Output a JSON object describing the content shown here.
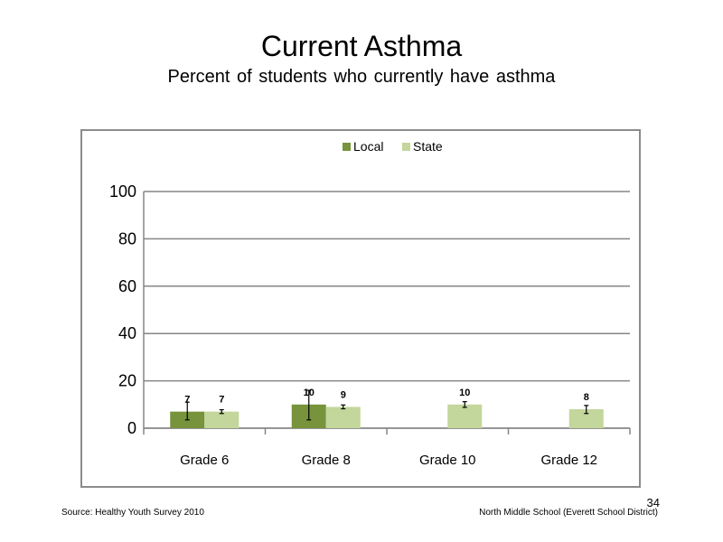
{
  "slide": {
    "title": "Current Asthma",
    "subtitle": "Percent of students who currently have asthma",
    "source": "Source: Healthy Youth Survey 2010",
    "school": "North Middle School (Everett School District)",
    "page_number": "34"
  },
  "chart_data": {
    "type": "bar",
    "categories": [
      "Grade 6",
      "Grade 8",
      "Grade 10",
      "Grade 12"
    ],
    "series": [
      {
        "name": "Local",
        "color": "#77933c",
        "values": [
          7,
          10,
          null,
          null
        ],
        "labels": [
          "7",
          "10",
          "",
          ""
        ],
        "error_low": [
          3.5,
          3.5,
          null,
          null
        ],
        "error_high": [
          11,
          16,
          null,
          null
        ]
      },
      {
        "name": "State",
        "color": "#c3d69b",
        "values": [
          7,
          9,
          10,
          8
        ],
        "labels": [
          "7",
          "9",
          "10",
          "8"
        ],
        "error_low": [
          6.2,
          8.2,
          8.8,
          6.2
        ],
        "error_high": [
          7.8,
          9.8,
          11.2,
          9.6
        ]
      }
    ],
    "ylim": [
      0,
      100
    ],
    "yticks": [
      0,
      20,
      40,
      60,
      80,
      100
    ],
    "grid": true,
    "legend": "top-center",
    "xlabel": "",
    "ylabel": ""
  }
}
